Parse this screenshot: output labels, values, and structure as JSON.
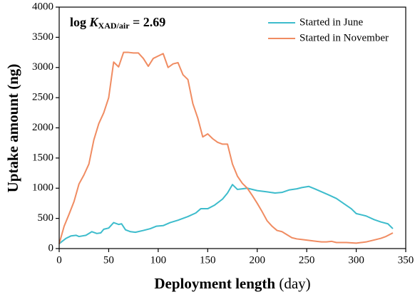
{
  "chart_data": {
    "type": "line",
    "annotation": {
      "prefix": "log ",
      "symbol": "K",
      "subscript": "XAD/air",
      "suffix": " = 2.69"
    },
    "x_label": {
      "text": "Deployment length",
      "unit": "(day)"
    },
    "y_label": "Uptake amount (ng)",
    "xlim": [
      0,
      350
    ],
    "xticks": [
      0,
      50,
      100,
      150,
      200,
      250,
      300,
      350
    ],
    "ylim": [
      0,
      4000
    ],
    "yticks": [
      0,
      500,
      1000,
      1500,
      2000,
      2500,
      3000,
      3500,
      4000
    ],
    "legend": "upper right",
    "series": [
      {
        "name": "Started in June",
        "color": "#3dbccc",
        "x": [
          0,
          3,
          7,
          12,
          17,
          20,
          27,
          33,
          38,
          42,
          45,
          50,
          55,
          60,
          63,
          67,
          72,
          77,
          85,
          92,
          98,
          105,
          112,
          120,
          130,
          138,
          143,
          150,
          157,
          165,
          170,
          175,
          180,
          185,
          190,
          200,
          210,
          218,
          225,
          232,
          240,
          245,
          252,
          258,
          265,
          272,
          280,
          287,
          295,
          300,
          310,
          318,
          325,
          332,
          337
        ],
        "values": [
          80,
          120,
          170,
          210,
          220,
          200,
          220,
          280,
          250,
          260,
          320,
          340,
          430,
          400,
          410,
          310,
          280,
          270,
          300,
          330,
          370,
          380,
          430,
          470,
          530,
          590,
          660,
          660,
          720,
          820,
          920,
          1060,
          980,
          990,
          1000,
          960,
          940,
          920,
          930,
          970,
          990,
          1010,
          1030,
          990,
          940,
          890,
          830,
          750,
          660,
          580,
          540,
          480,
          440,
          410,
          330
        ]
      },
      {
        "name": "Started in November",
        "color": "#f08c62",
        "x": [
          0,
          5,
          10,
          15,
          20,
          25,
          30,
          35,
          40,
          45,
          50,
          55,
          60,
          65,
          70,
          75,
          80,
          85,
          90,
          95,
          100,
          105,
          110,
          115,
          120,
          125,
          130,
          135,
          140,
          145,
          150,
          155,
          160,
          165,
          170,
          175,
          180,
          185,
          190,
          195,
          200,
          205,
          210,
          215,
          220,
          225,
          230,
          235,
          240,
          245,
          250,
          255,
          260,
          265,
          270,
          275,
          280,
          290,
          300,
          305,
          310,
          320,
          325,
          330,
          337
        ],
        "values": [
          80,
          370,
          570,
          780,
          1070,
          1220,
          1400,
          1800,
          2070,
          2250,
          2500,
          3090,
          3010,
          3250,
          3250,
          3240,
          3240,
          3150,
          3020,
          3150,
          3190,
          3230,
          3000,
          3060,
          3080,
          2880,
          2800,
          2400,
          2160,
          1850,
          1900,
          1820,
          1760,
          1730,
          1730,
          1400,
          1200,
          1080,
          1000,
          880,
          750,
          610,
          460,
          370,
          300,
          280,
          230,
          180,
          160,
          150,
          140,
          130,
          120,
          110,
          110,
          120,
          100,
          100,
          90,
          100,
          110,
          150,
          170,
          200,
          260
        ]
      }
    ]
  }
}
